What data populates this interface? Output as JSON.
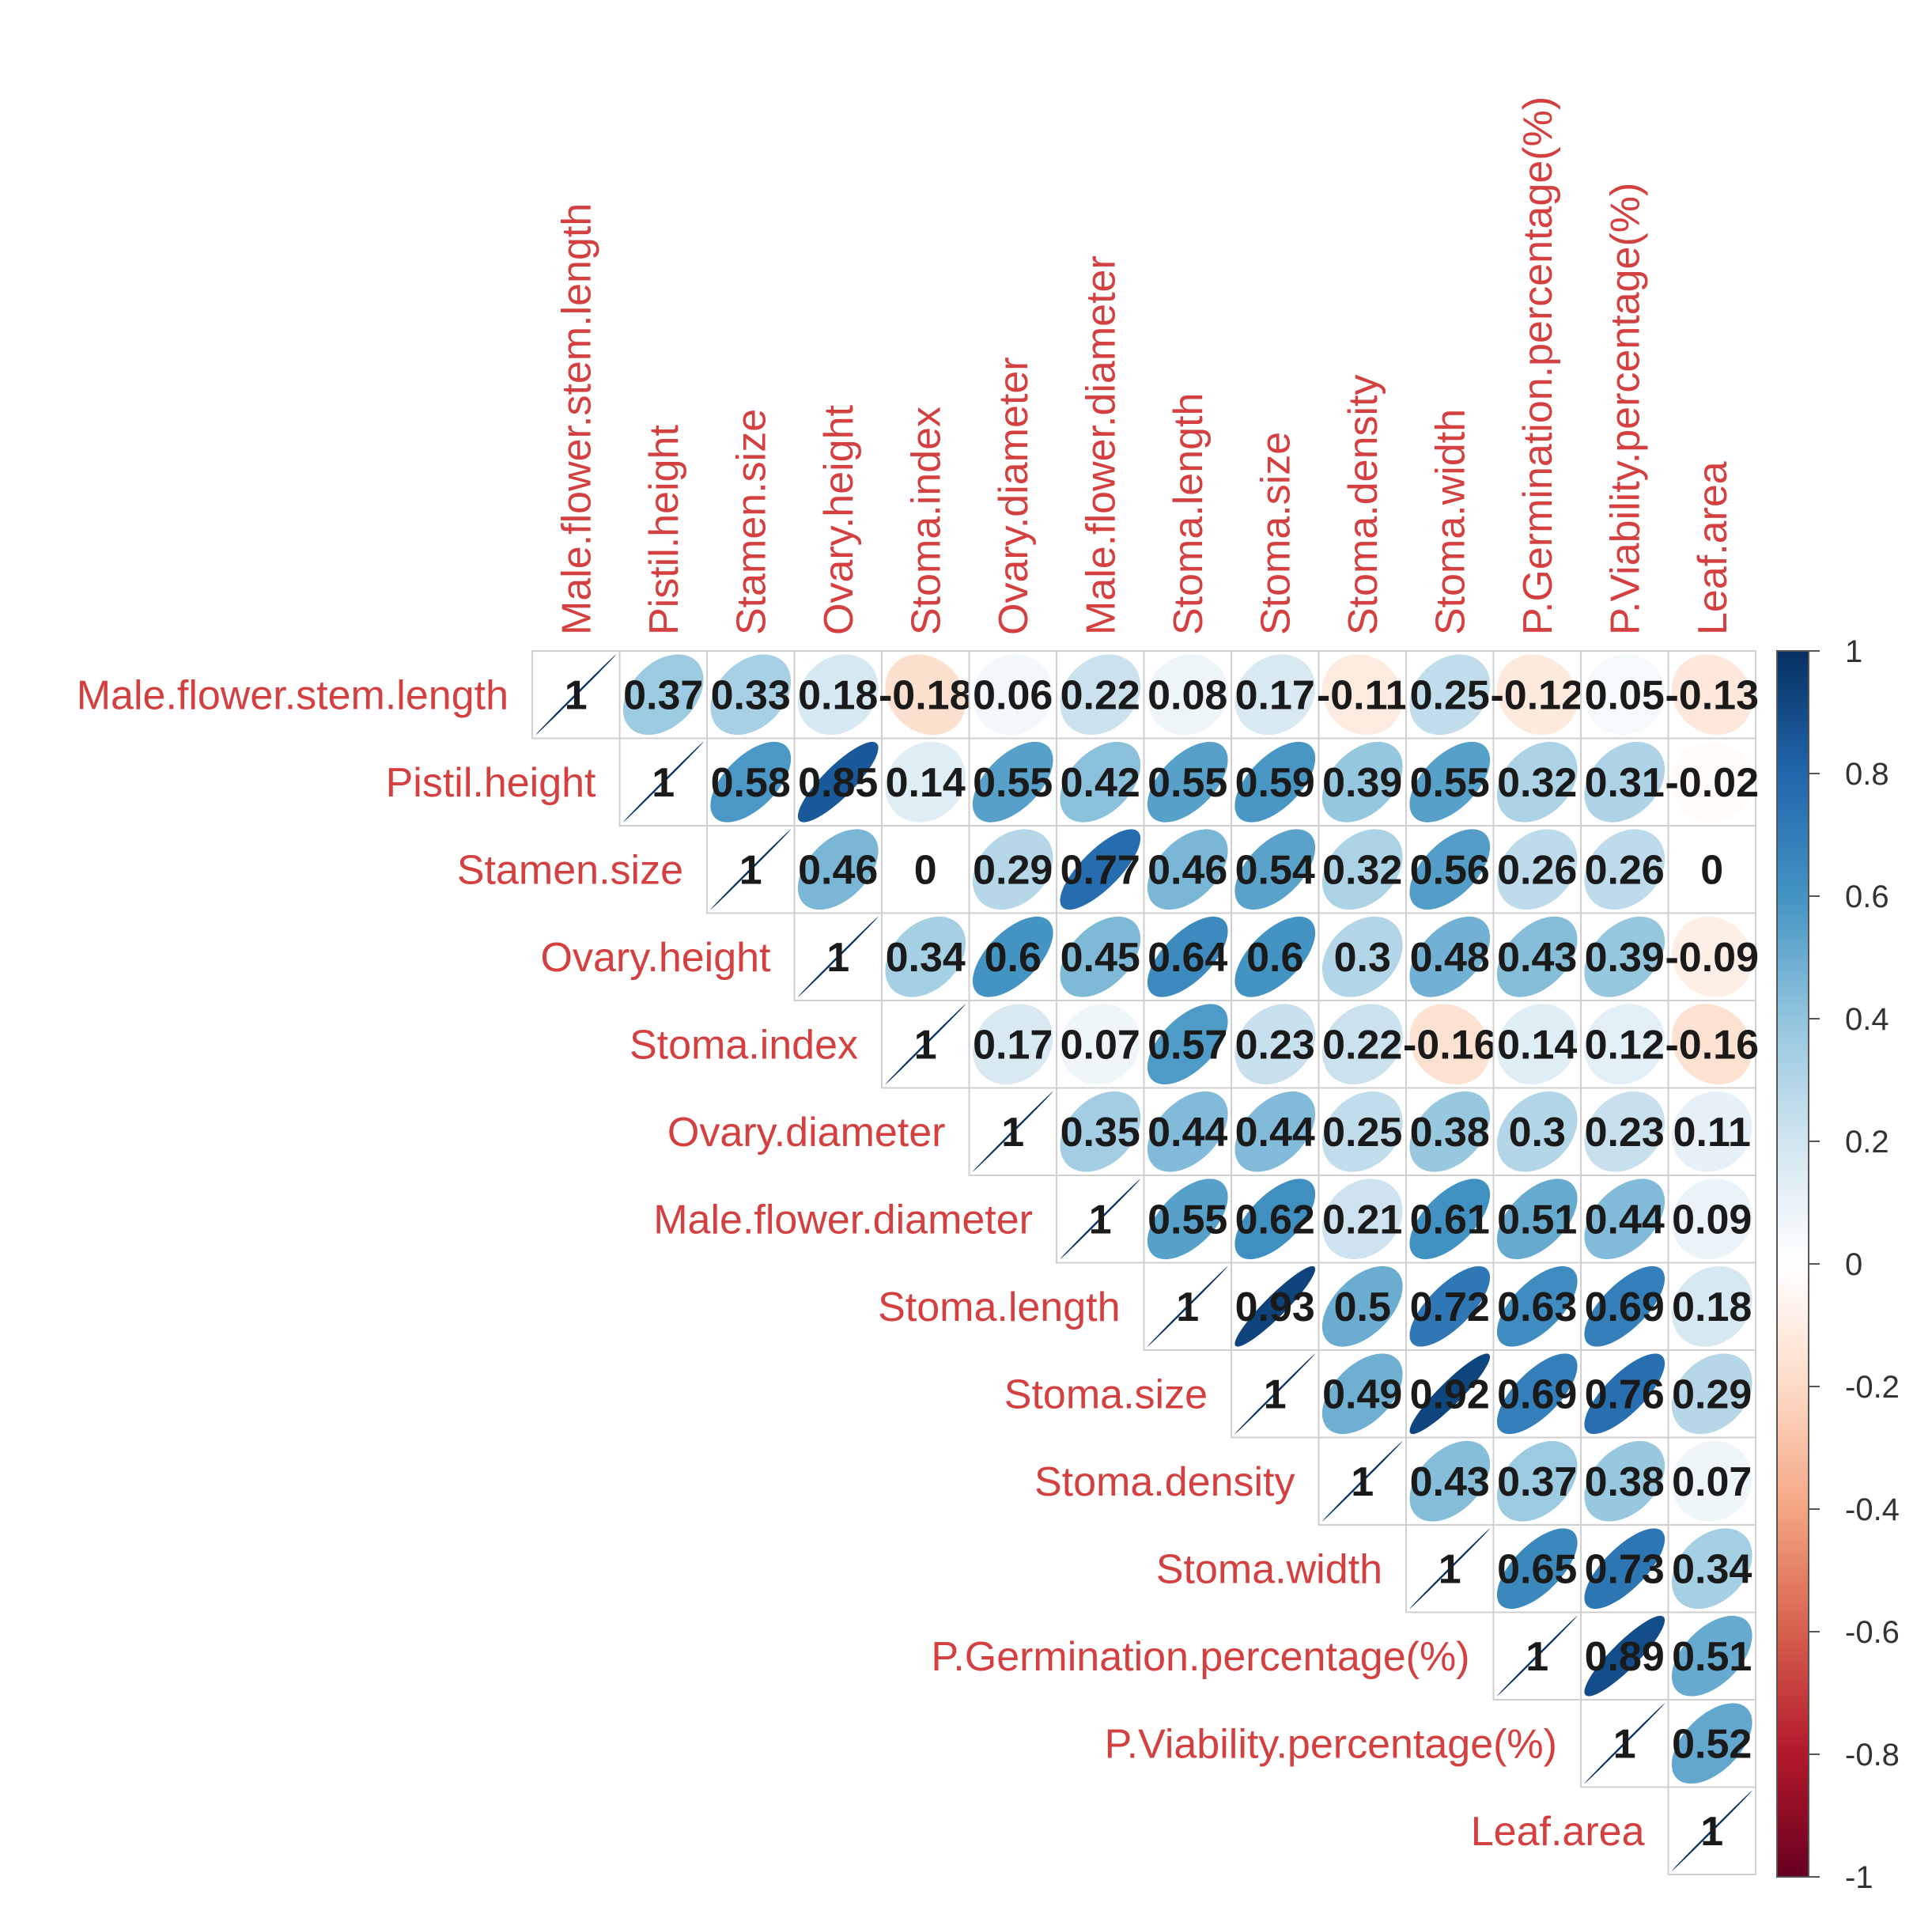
{
  "chart_data": {
    "type": "heatmap",
    "style": "upper-triangular correlation matrix, ellipse glyphs with coefficient labels",
    "variables": [
      "Male.flower.stem.length",
      "Pistil.height",
      "Stamen.size",
      "Ovary.height",
      "Stoma.index",
      "Ovary.diameter",
      "Male.flower.diameter",
      "Stoma.length",
      "Stoma.size",
      "Stoma.density",
      "Stoma.width",
      "P.Germination.percentage(%)",
      "P.Viability.percentage(%)",
      "Leaf.area"
    ],
    "matrix_upper": [
      [
        "1",
        "0.37",
        "0.33",
        "0.18",
        "-0.18",
        "0.06",
        "0.22",
        "0.08",
        "0.17",
        "-0.11",
        "0.25",
        "-0.12",
        "0.05",
        "-0.13"
      ],
      [
        "1",
        "0.58",
        "0.85",
        "0.14",
        "0.55",
        "0.42",
        "0.55",
        "0.59",
        "0.39",
        "0.55",
        "0.32",
        "0.31",
        "-0.02"
      ],
      [
        "1",
        "0.46",
        "0",
        "0.29",
        "0.77",
        "0.46",
        "0.54",
        "0.32",
        "0.56",
        "0.26",
        "0.26",
        "0"
      ],
      [
        "1",
        "0.34",
        "0.6",
        "0.45",
        "0.64",
        "0.6",
        "0.3",
        "0.48",
        "0.43",
        "0.39",
        "-0.09"
      ],
      [
        "1",
        "0.17",
        "0.07",
        "0.57",
        "0.23",
        "0.22",
        "-0.16",
        "0.14",
        "0.12",
        "-0.16"
      ],
      [
        "1",
        "0.35",
        "0.44",
        "0.44",
        "0.25",
        "0.38",
        "0.3",
        "0.23",
        "0.11"
      ],
      [
        "1",
        "0.55",
        "0.62",
        "0.21",
        "0.61",
        "0.51",
        "0.44",
        "0.09"
      ],
      [
        "1",
        "0.93",
        "0.5",
        "0.72",
        "0.63",
        "0.69",
        "0.18"
      ],
      [
        "1",
        "0.49",
        "0.92",
        "0.69",
        "0.76",
        "0.29"
      ],
      [
        "1",
        "0.43",
        "0.37",
        "0.38",
        "0.07"
      ],
      [
        "1",
        "0.65",
        "0.73",
        "0.34"
      ],
      [
        "1",
        "0.89",
        "0.51"
      ],
      [
        "1",
        "0.52"
      ],
      [
        "1"
      ]
    ],
    "colorbar": {
      "range": [
        -1,
        1
      ],
      "ticks": [
        "1",
        "0.8",
        "0.6",
        "0.4",
        "0.2",
        "0",
        "-0.2",
        "-0.4",
        "-0.6",
        "-0.8",
        "-1"
      ],
      "color_low": "#67001F",
      "color_mid": "#FFFFFF",
      "color_high": "#053061"
    },
    "label_color": "#D43F3F"
  }
}
